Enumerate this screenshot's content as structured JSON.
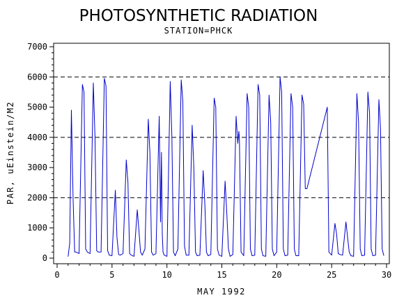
{
  "chart_data": {
    "type": "line",
    "title": "PHOTOSYNTHETIC RADIATION",
    "subtitle": "STATION=PHCK",
    "xlabel": "MAY 1992",
    "ylabel": "PAR, uEinstein/M2",
    "xlim": [
      0,
      30
    ],
    "ylim": [
      0,
      7000
    ],
    "x_ticks": [
      0,
      5,
      10,
      15,
      20,
      25,
      30
    ],
    "y_ticks": [
      0,
      1000,
      2000,
      3000,
      4000,
      5000,
      6000,
      7000
    ],
    "reference_lines": [
      2000,
      4000,
      6000
    ],
    "grid": false,
    "legend": "none",
    "colors": {
      "series": "#0000cc",
      "axes": "#000000",
      "reference": "#000000"
    },
    "series": [
      {
        "x": [
          1.0,
          1.15,
          1.3,
          1.45,
          1.6,
          1.75,
          2.0,
          2.3,
          2.45,
          2.6,
          2.75,
          3.0,
          3.3,
          3.45,
          3.6,
          3.75,
          4.0,
          4.3,
          4.45,
          4.6,
          4.75,
          5.0,
          5.3,
          5.45,
          5.6,
          5.75,
          6.0,
          6.3,
          6.45,
          6.6,
          6.75,
          7.0,
          7.3,
          7.45,
          7.6,
          7.75,
          8.0,
          8.3,
          8.45,
          8.6,
          8.75,
          9.0,
          9.3,
          9.42,
          9.5,
          9.58,
          9.65,
          9.75,
          10.0,
          10.3,
          10.45,
          10.6,
          10.75,
          11.0,
          11.3,
          11.45,
          11.6,
          11.75,
          12.0,
          12.3,
          12.45,
          12.6,
          12.75,
          13.0,
          13.3,
          13.45,
          13.6,
          13.75,
          14.0,
          14.3,
          14.45,
          14.6,
          14.75,
          15.0,
          15.3,
          15.45,
          15.6,
          15.75,
          16.0,
          16.3,
          16.45,
          16.55,
          16.6,
          16.75,
          17.0,
          17.3,
          17.45,
          17.6,
          17.75,
          18.0,
          18.3,
          18.45,
          18.6,
          18.75,
          19.0,
          19.3,
          19.45,
          19.6,
          19.75,
          20.0,
          20.3,
          20.45,
          20.6,
          20.75,
          21.0,
          21.3,
          21.45,
          21.6,
          21.75,
          22.0,
          22.3,
          22.45,
          22.6,
          22.75,
          24.6,
          24.75,
          25.0,
          25.3,
          25.45,
          25.6,
          25.75,
          26.0,
          26.3,
          26.45,
          26.6,
          26.75,
          27.0,
          27.3,
          27.45,
          27.6,
          27.75,
          28.0,
          28.3,
          28.45,
          28.6,
          28.75,
          29.0,
          29.3,
          29.45,
          29.6,
          29.75
        ],
        "y": [
          50,
          500,
          4900,
          2000,
          200,
          200,
          150,
          5750,
          5500,
          300,
          200,
          150,
          5800,
          4000,
          250,
          200,
          200,
          5950,
          5700,
          250,
          100,
          80,
          2250,
          700,
          120,
          100,
          150,
          3250,
          2500,
          150,
          100,
          60,
          1600,
          900,
          200,
          100,
          300,
          4600,
          3500,
          200,
          100,
          150,
          4700,
          1200,
          3500,
          800,
          200,
          100,
          60,
          5850,
          4000,
          200,
          80,
          300,
          5900,
          5200,
          400,
          100,
          100,
          4400,
          3000,
          200,
          80,
          100,
          2900,
          1800,
          200,
          80,
          120,
          5300,
          5000,
          300,
          100,
          60,
          2550,
          1500,
          300,
          60,
          120,
          4700,
          3800,
          4200,
          4000,
          200,
          80,
          5450,
          5000,
          300,
          80,
          100,
          5750,
          5400,
          300,
          80,
          60,
          5400,
          4500,
          300,
          80,
          200,
          6000,
          5500,
          300,
          80,
          100,
          5450,
          5000,
          300,
          80,
          80,
          5400,
          5100,
          2300,
          2300,
          5000,
          200,
          100,
          1150,
          800,
          150,
          120,
          100,
          1200,
          700,
          200,
          80,
          60,
          5450,
          4500,
          300,
          80,
          100,
          5500,
          4800,
          300,
          80,
          100,
          5250,
          4300,
          300,
          80
        ]
      }
    ]
  }
}
